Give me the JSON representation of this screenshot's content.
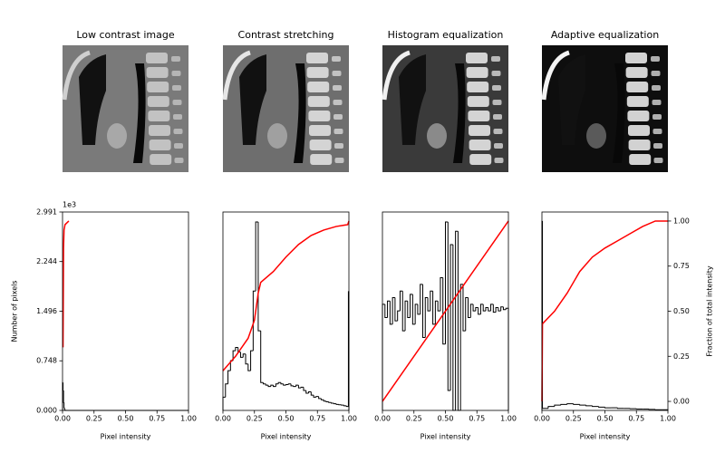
{
  "chart_data": [
    {
      "type": "histogram",
      "title": "Low contrast image",
      "xlabel": "Pixel intensity",
      "ylabel": "Number of pixels",
      "y_offset": "1e3",
      "color": "#000000",
      "bins": [
        0,
        0.004,
        0.008,
        0.012,
        0.016,
        0.02,
        0.03,
        1.0
      ],
      "counts": [
        420,
        300,
        120,
        40,
        10,
        2,
        0
      ],
      "cdf": {
        "color": "#ff0000",
        "x": [
          0.004,
          0.008,
          0.012,
          0.02,
          0.05
        ],
        "values": [
          0.3,
          0.85,
          0.95,
          0.98,
          1.0
        ]
      },
      "xlim": [
        0,
        1
      ],
      "xticks": [
        {
          "value": 0,
          "label": "0.00"
        },
        {
          "value": 0.25,
          "label": "0.25"
        },
        {
          "value": 0.5,
          "label": "0.50"
        },
        {
          "value": 0.75,
          "label": "0.75"
        },
        {
          "value": 1,
          "label": "1.00"
        }
      ],
      "ylim": [
        0,
        2991
      ],
      "yticks": [
        {
          "value": 0,
          "label": "0.000"
        },
        {
          "value": 748,
          "label": "0.748"
        },
        {
          "value": 1496,
          "label": "1.496"
        },
        {
          "value": 2244,
          "label": "2.244"
        },
        {
          "value": 2991,
          "label": "2.991"
        }
      ],
      "y2lim": [
        -0.05,
        1.05
      ]
    },
    {
      "type": "histogram",
      "title": "Contrast stretching",
      "xlabel": "Pixel intensity",
      "color": "#000000",
      "bins": [
        0,
        0.02,
        0.04,
        0.06,
        0.08,
        0.1,
        0.12,
        0.14,
        0.16,
        0.18,
        0.2,
        0.22,
        0.24,
        0.26,
        0.28,
        0.3,
        0.32,
        0.34,
        0.36,
        0.38,
        0.4,
        0.42,
        0.44,
        0.46,
        0.48,
        0.5,
        0.52,
        0.54,
        0.56,
        0.58,
        0.6,
        0.62,
        0.64,
        0.66,
        0.68,
        0.7,
        0.72,
        0.74,
        0.76,
        0.78,
        0.8,
        0.82,
        0.84,
        0.86,
        0.88,
        0.9,
        0.92,
        0.94,
        0.96,
        0.98,
        0.996,
        1.0
      ],
      "counts": [
        200,
        400,
        600,
        750,
        900,
        950,
        880,
        800,
        850,
        700,
        600,
        900,
        1800,
        2840,
        1200,
        420,
        400,
        380,
        360,
        380,
        360,
        400,
        420,
        400,
        380,
        390,
        400,
        370,
        360,
        380,
        340,
        350,
        300,
        260,
        280,
        230,
        200,
        210,
        180,
        160,
        140,
        130,
        120,
        110,
        100,
        90,
        85,
        80,
        70,
        60,
        1790
      ],
      "cdf": {
        "color": "#ff0000",
        "x": [
          0,
          0.1,
          0.2,
          0.25,
          0.28,
          0.3,
          0.4,
          0.5,
          0.6,
          0.7,
          0.8,
          0.9,
          0.99,
          1.0
        ],
        "values": [
          0.17,
          0.25,
          0.35,
          0.45,
          0.6,
          0.66,
          0.72,
          0.8,
          0.87,
          0.92,
          0.95,
          0.97,
          0.98,
          1.0
        ]
      },
      "xlim": [
        0,
        1
      ],
      "xticks": [
        {
          "value": 0,
          "label": "0.00"
        },
        {
          "value": 0.25,
          "label": "0.25"
        },
        {
          "value": 0.5,
          "label": "0.50"
        },
        {
          "value": 0.75,
          "label": "0.75"
        },
        {
          "value": 1,
          "label": "1.00"
        }
      ],
      "ylim": [
        0,
        2991
      ],
      "y2lim": [
        -0.05,
        1.05
      ]
    },
    {
      "type": "histogram",
      "title": "Histogram equalization",
      "xlabel": "Pixel intensity",
      "color": "#000000",
      "bins": [
        0,
        0.02,
        0.04,
        0.06,
        0.08,
        0.1,
        0.12,
        0.14,
        0.16,
        0.18,
        0.2,
        0.22,
        0.24,
        0.26,
        0.28,
        0.3,
        0.32,
        0.34,
        0.36,
        0.38,
        0.4,
        0.42,
        0.44,
        0.46,
        0.48,
        0.5,
        0.52,
        0.54,
        0.56,
        0.58,
        0.6,
        0.62,
        0.64,
        0.66,
        0.68,
        0.7,
        0.72,
        0.74,
        0.76,
        0.78,
        0.8,
        0.82,
        0.84,
        0.86,
        0.88,
        0.9,
        0.92,
        0.94,
        0.96,
        0.98,
        1.0
      ],
      "counts": [
        1600,
        1400,
        1650,
        1300,
        1700,
        1350,
        1500,
        1800,
        1200,
        1650,
        1400,
        1750,
        1300,
        1600,
        1450,
        1900,
        1100,
        1700,
        1500,
        1800,
        1300,
        1650,
        1500,
        2000,
        1000,
        2840,
        300,
        2500,
        0,
        2700,
        0,
        1900,
        1200,
        1700,
        1400,
        1600,
        1500,
        1550,
        1450,
        1600,
        1500,
        1550,
        1500,
        1600,
        1480,
        1550,
        1500,
        1560,
        1520,
        1540
      ],
      "cdf": {
        "color": "#ff0000",
        "x": [
          0,
          1
        ],
        "values": [
          0,
          1
        ]
      },
      "xlim": [
        0,
        1
      ],
      "xticks": [
        {
          "value": 0,
          "label": "0.00"
        },
        {
          "value": 0.25,
          "label": "0.25"
        },
        {
          "value": 0.5,
          "label": "0.50"
        },
        {
          "value": 0.75,
          "label": "0.75"
        },
        {
          "value": 1,
          "label": "1.00"
        }
      ],
      "ylim": [
        0,
        2991
      ],
      "y2lim": [
        -0.05,
        1.05
      ]
    },
    {
      "type": "histogram",
      "title": "Adaptive equalization",
      "xlabel": "Pixel intensity",
      "y2label": "Fraction of total intensity",
      "color": "#000000",
      "bins": [
        0,
        0.004,
        0.05,
        0.1,
        0.15,
        0.2,
        0.25,
        0.3,
        0.35,
        0.4,
        0.45,
        0.5,
        0.55,
        0.6,
        0.65,
        0.7,
        0.75,
        0.8,
        0.85,
        0.9,
        0.95,
        1.0
      ],
      "counts": [
        2855,
        30,
        60,
        80,
        90,
        100,
        90,
        80,
        70,
        60,
        50,
        40,
        40,
        30,
        30,
        25,
        20,
        20,
        15,
        10,
        10
      ],
      "cdf": {
        "color": "#ff0000",
        "x": [
          0,
          0.004,
          0.1,
          0.2,
          0.3,
          0.4,
          0.5,
          0.6,
          0.7,
          0.8,
          0.9,
          1.0
        ],
        "values": [
          0,
          0.43,
          0.5,
          0.6,
          0.72,
          0.8,
          0.85,
          0.89,
          0.93,
          0.97,
          1.0,
          1.0
        ]
      },
      "xlim": [
        0,
        1
      ],
      "xticks": [
        {
          "value": 0,
          "label": "0.00"
        },
        {
          "value": 0.25,
          "label": "0.25"
        },
        {
          "value": 0.5,
          "label": "0.50"
        },
        {
          "value": 0.75,
          "label": "0.75"
        },
        {
          "value": 1,
          "label": "1.00"
        }
      ],
      "ylim": [
        0,
        2991
      ],
      "y2lim": [
        -0.05,
        1.05
      ],
      "y2ticks": [
        {
          "value": 0,
          "label": "0.00"
        },
        {
          "value": 0.25,
          "label": "0.25"
        },
        {
          "value": 0.5,
          "label": "0.50"
        },
        {
          "value": 0.75,
          "label": "0.75"
        },
        {
          "value": 1,
          "label": "1.00"
        }
      ]
    }
  ]
}
